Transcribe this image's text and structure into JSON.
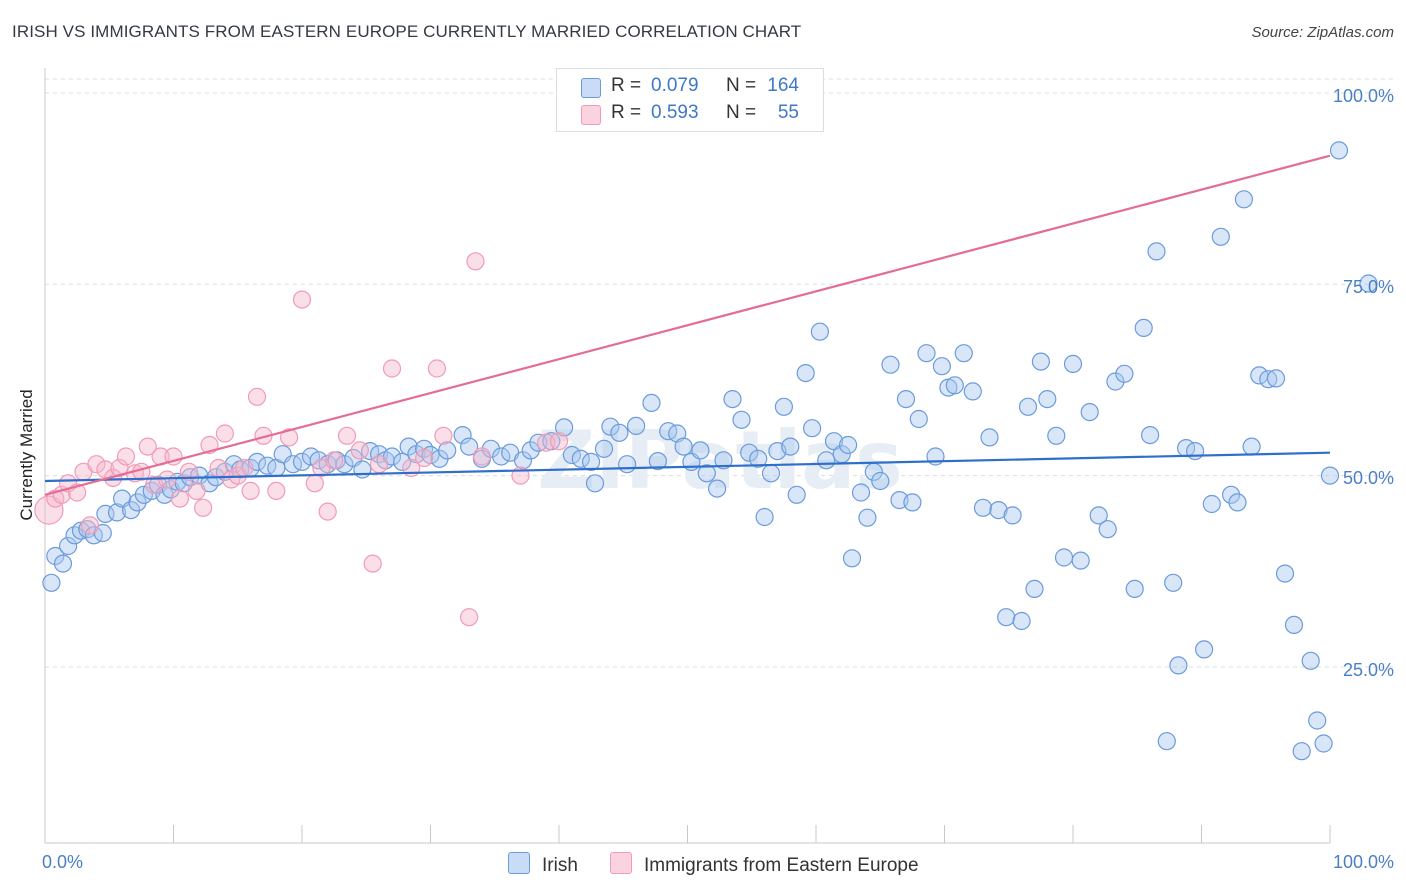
{
  "title": "IRISH VS IMMIGRANTS FROM EASTERN EUROPE CURRENTLY MARRIED CORRELATION CHART",
  "source": "Source: ZipAtlas.com",
  "watermark": "ZIPatlas",
  "stats": [
    {
      "r_label": "R =",
      "r_value": "0.079",
      "n_label": "N =",
      "n_value": "164",
      "color": "#a9c8f0"
    },
    {
      "r_label": "R =",
      "r_value": "0.593",
      "n_label": "N =",
      "n_value": "55",
      "color": "#f7b9cd"
    }
  ],
  "chart_data": {
    "type": "scatter",
    "title": "IRISH VS IMMIGRANTS FROM EASTERN EUROPE CURRENTLY MARRIED CORRELATION CHART",
    "xlabel": "",
    "ylabel": "Currently Married",
    "xlim": [
      0,
      100
    ],
    "ylim": [
      2,
      103
    ],
    "x_tick_labels": [
      "0.0%",
      "100.0%"
    ],
    "y_ticks": [
      25,
      50,
      75,
      100
    ],
    "y_tick_labels": [
      "25.0%",
      "50.0%",
      "75.0%",
      "100.0%"
    ],
    "grid": "horizontal-dashed",
    "legend": "bottom-center",
    "series": [
      {
        "name": "Irish",
        "color": "#6b9bdc",
        "fill": "#a9c8f0",
        "trend": {
          "x": [
            0,
            100
          ],
          "y": [
            49.3,
            53.0
          ],
          "color": "#2e6fcc"
        },
        "points": [
          [
            0.5,
            36
          ],
          [
            0.8,
            39.5
          ],
          [
            1.4,
            38.5
          ],
          [
            1.8,
            40.8
          ],
          [
            2.3,
            42.2
          ],
          [
            2.8,
            42.8
          ],
          [
            3.3,
            43
          ],
          [
            3.8,
            42.2
          ],
          [
            4.5,
            42.5
          ],
          [
            4.7,
            45
          ],
          [
            5.6,
            45.2
          ],
          [
            6,
            47
          ],
          [
            6.7,
            45.5
          ],
          [
            7.2,
            46.5
          ],
          [
            7.7,
            47.5
          ],
          [
            8.3,
            48
          ],
          [
            8.8,
            48.8
          ],
          [
            9.3,
            47.5
          ],
          [
            9.8,
            48.2
          ],
          [
            10.3,
            49.2
          ],
          [
            10.8,
            49
          ],
          [
            11.3,
            49.8
          ],
          [
            12,
            50
          ],
          [
            12.8,
            49
          ],
          [
            13.3,
            49.8
          ],
          [
            14,
            50.5
          ],
          [
            14.7,
            51.5
          ],
          [
            15.2,
            50.8
          ],
          [
            16,
            51
          ],
          [
            16.5,
            51.8
          ],
          [
            17.3,
            51.3
          ],
          [
            18,
            51
          ],
          [
            18.5,
            52.8
          ],
          [
            19.3,
            51.5
          ],
          [
            20,
            51.8
          ],
          [
            20.7,
            52.5
          ],
          [
            21.3,
            52
          ],
          [
            22,
            51.5
          ],
          [
            22.7,
            52
          ],
          [
            23.3,
            51.5
          ],
          [
            24,
            52.3
          ],
          [
            24.7,
            50.8
          ],
          [
            25.3,
            53.2
          ],
          [
            26,
            52.8
          ],
          [
            26.5,
            52
          ],
          [
            27,
            52.5
          ],
          [
            27.8,
            51.8
          ],
          [
            28.3,
            53.8
          ],
          [
            28.9,
            52.8
          ],
          [
            29.5,
            53.5
          ],
          [
            30,
            52.7
          ],
          [
            30.7,
            52.2
          ],
          [
            31.3,
            53.3
          ],
          [
            32.5,
            55.3
          ],
          [
            33,
            53.8
          ],
          [
            34,
            52.2
          ],
          [
            34.7,
            53.5
          ],
          [
            35.5,
            52.5
          ],
          [
            36.2,
            53
          ],
          [
            37.2,
            52
          ],
          [
            37.8,
            53.3
          ],
          [
            38.4,
            54.3
          ],
          [
            39.4,
            54.5
          ],
          [
            40.4,
            56.3
          ],
          [
            41,
            52.7
          ],
          [
            41.7,
            52.2
          ],
          [
            42.5,
            51.8
          ],
          [
            42.8,
            49
          ],
          [
            43.5,
            53.5
          ],
          [
            44,
            56.4
          ],
          [
            44.7,
            55.6
          ],
          [
            45.3,
            51.5
          ],
          [
            46,
            56.5
          ],
          [
            47.2,
            59.5
          ],
          [
            47.7,
            51.9
          ],
          [
            48.5,
            55.8
          ],
          [
            49.2,
            55.5
          ],
          [
            49.7,
            53.8
          ],
          [
            50.3,
            51.8
          ],
          [
            51,
            53.3
          ],
          [
            51.5,
            50.3
          ],
          [
            52.3,
            48.3
          ],
          [
            52.8,
            52
          ],
          [
            53.5,
            60
          ],
          [
            54.2,
            57.3
          ],
          [
            54.8,
            53
          ],
          [
            55.5,
            52.2
          ],
          [
            56,
            44.6
          ],
          [
            56.5,
            50.3
          ],
          [
            57,
            53.2
          ],
          [
            57.5,
            59
          ],
          [
            58,
            53.8
          ],
          [
            58.5,
            47.5
          ],
          [
            59.2,
            63.4
          ],
          [
            59.7,
            56.2
          ],
          [
            60.3,
            68.8
          ],
          [
            60.8,
            52
          ],
          [
            61.4,
            54.5
          ],
          [
            62,
            52.8
          ],
          [
            62.5,
            54
          ],
          [
            62.8,
            39.2
          ],
          [
            63.5,
            47.8
          ],
          [
            64,
            44.5
          ],
          [
            64.5,
            50.5
          ],
          [
            65,
            49.3
          ],
          [
            65.8,
            64.5
          ],
          [
            66.5,
            46.8
          ],
          [
            67,
            60
          ],
          [
            67.5,
            46.5
          ],
          [
            68,
            57.4
          ],
          [
            68.6,
            66
          ],
          [
            69.3,
            52.5
          ],
          [
            69.8,
            64.3
          ],
          [
            70.3,
            61.5
          ],
          [
            70.8,
            61.8
          ],
          [
            71.5,
            66
          ],
          [
            72.2,
            61
          ],
          [
            73,
            45.8
          ],
          [
            73.5,
            55
          ],
          [
            74.2,
            45.5
          ],
          [
            74.8,
            31.5
          ],
          [
            75.3,
            44.8
          ],
          [
            76,
            31
          ],
          [
            76.5,
            59
          ],
          [
            77,
            35.2
          ],
          [
            77.5,
            64.9
          ],
          [
            78,
            60
          ],
          [
            78.7,
            55.2
          ],
          [
            79.3,
            39.3
          ],
          [
            80,
            64.6
          ],
          [
            80.6,
            38.9
          ],
          [
            81.3,
            58.3
          ],
          [
            82,
            44.8
          ],
          [
            82.7,
            43
          ],
          [
            83.3,
            62.3
          ],
          [
            84,
            63.3
          ],
          [
            84.8,
            35.2
          ],
          [
            85.5,
            69.3
          ],
          [
            86,
            55.3
          ],
          [
            86.5,
            79.3
          ],
          [
            87.3,
            15.3
          ],
          [
            87.8,
            36
          ],
          [
            88.2,
            25.2
          ],
          [
            88.8,
            53.6
          ],
          [
            89.5,
            53.2
          ],
          [
            90.2,
            27.3
          ],
          [
            90.8,
            46.3
          ],
          [
            91.5,
            81.2
          ],
          [
            92.3,
            47.5
          ],
          [
            92.8,
            46.5
          ],
          [
            93.3,
            86.1
          ],
          [
            93.9,
            53.8
          ],
          [
            94.5,
            63.1
          ],
          [
            95.2,
            62.6
          ],
          [
            95.8,
            62.7
          ],
          [
            96.5,
            37.2
          ],
          [
            97.2,
            30.5
          ],
          [
            97.8,
            14
          ],
          [
            98.5,
            25.8
          ],
          [
            99,
            18
          ],
          [
            99.5,
            15
          ],
          [
            100,
            50
          ],
          [
            100.7,
            92.5
          ],
          [
            103,
            75.1
          ]
        ]
      },
      {
        "name": "Immigrants from Eastern Europe",
        "color": "#f29ab7",
        "fill": "#f7b9cd",
        "trend": {
          "x": [
            0,
            100
          ],
          "y": [
            47.5,
            91.8
          ],
          "color": "#e46c96"
        },
        "points": [
          [
            0.3,
            45.5
          ],
          [
            0.8,
            47
          ],
          [
            1.3,
            47.5
          ],
          [
            1.8,
            49
          ],
          [
            2.5,
            47.8
          ],
          [
            3,
            50.5
          ],
          [
            3.5,
            43.5
          ],
          [
            4,
            51.5
          ],
          [
            4.7,
            50.8
          ],
          [
            5.3,
            49.7
          ],
          [
            5.8,
            51
          ],
          [
            6.3,
            52.5
          ],
          [
            7,
            50.3
          ],
          [
            7.5,
            50.5
          ],
          [
            8,
            53.8
          ],
          [
            8.5,
            48.8
          ],
          [
            9,
            52.5
          ],
          [
            9.5,
            49.5
          ],
          [
            10,
            52.5
          ],
          [
            10.5,
            47
          ],
          [
            11.2,
            50.5
          ],
          [
            11.8,
            48
          ],
          [
            12.3,
            45.8
          ],
          [
            12.8,
            54
          ],
          [
            13.5,
            51
          ],
          [
            14,
            55.5
          ],
          [
            14.5,
            49.5
          ],
          [
            15,
            50
          ],
          [
            15.5,
            51
          ],
          [
            16,
            48
          ],
          [
            16.5,
            60.3
          ],
          [
            17,
            55.2
          ],
          [
            18,
            48
          ],
          [
            19,
            55
          ],
          [
            20,
            73
          ],
          [
            21,
            49
          ],
          [
            21.5,
            51
          ],
          [
            22,
            45.3
          ],
          [
            22.5,
            52
          ],
          [
            23.5,
            55.2
          ],
          [
            24.5,
            53.3
          ],
          [
            25.5,
            38.5
          ],
          [
            26,
            51.5
          ],
          [
            27,
            64
          ],
          [
            28.5,
            51
          ],
          [
            29.5,
            52.3
          ],
          [
            30.5,
            64
          ],
          [
            31,
            55.2
          ],
          [
            33,
            31.5
          ],
          [
            33.5,
            78
          ],
          [
            34,
            52.5
          ],
          [
            37,
            50
          ],
          [
            39,
            54.3
          ],
          [
            40,
            54.5
          ],
          [
            43.5,
            100
          ]
        ]
      }
    ]
  }
}
